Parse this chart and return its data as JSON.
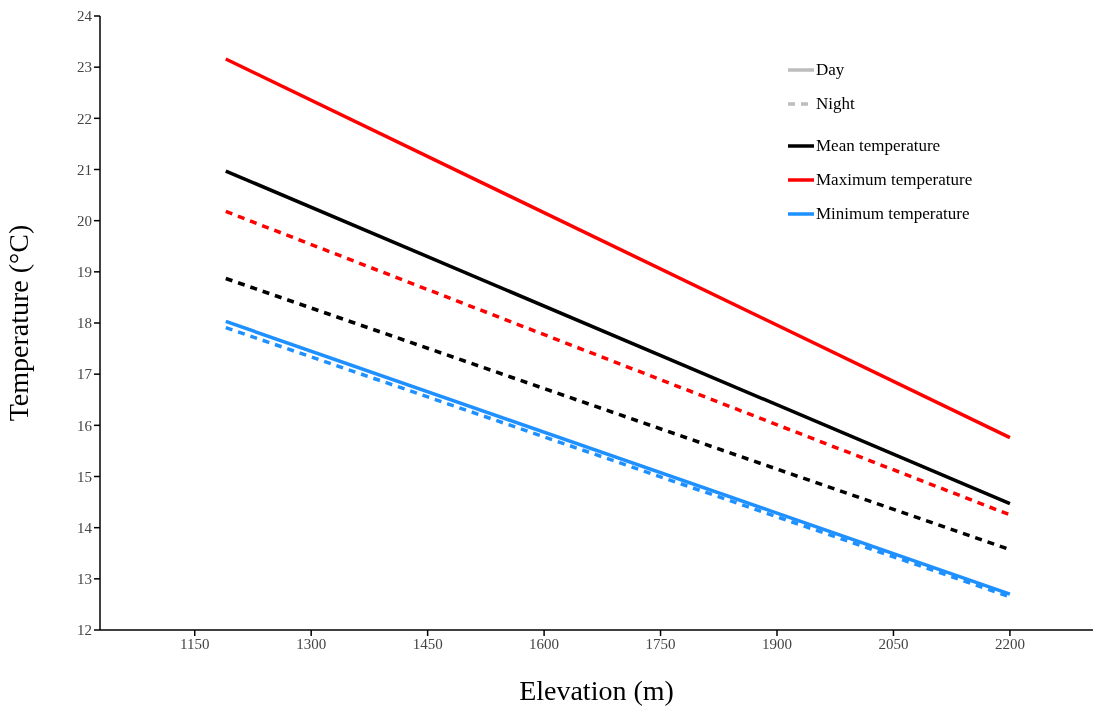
{
  "chart_data": {
    "type": "line",
    "xlabel": "Elevation (m)",
    "ylabel": "Temperature (°C)",
    "xlim": [
      1028,
      2307
    ],
    "xticks": [
      1150,
      1300,
      1450,
      1600,
      1750,
      1900,
      2050,
      2200
    ],
    "ylim": [
      12,
      24
    ],
    "yticks": [
      12,
      13,
      14,
      15,
      16,
      17,
      18,
      19,
      20,
      21,
      22,
      23,
      24
    ],
    "grid": false,
    "legend": "top right",
    "marker": "none",
    "annotations": [
      "Day",
      "Night"
    ],
    "x": [
      1190,
      2200
    ],
    "series": [
      {
        "name": "Mean temperature",
        "color": "#000000",
        "values": [
          20.97,
          14.47
        ],
        "line_style": "solid"
      },
      {
        "name": "Maximum temperature",
        "color": "#ff0000",
        "values": [
          23.16,
          15.76
        ],
        "line_style": "solid"
      },
      {
        "name": "Minimum temperature",
        "color": "#1e90ff",
        "values": [
          18.03,
          12.7
        ],
        "line_style": "solid"
      },
      {
        "color": "#000000",
        "values": [
          18.87,
          13.57
        ],
        "line_style": "dashed"
      },
      {
        "color": "#ff0000",
        "values": [
          20.18,
          14.25
        ],
        "line_style": "dashed"
      },
      {
        "color": "#1e90ff",
        "values": [
          17.91,
          12.65
        ],
        "line_style": "dashed"
      }
    ]
  }
}
